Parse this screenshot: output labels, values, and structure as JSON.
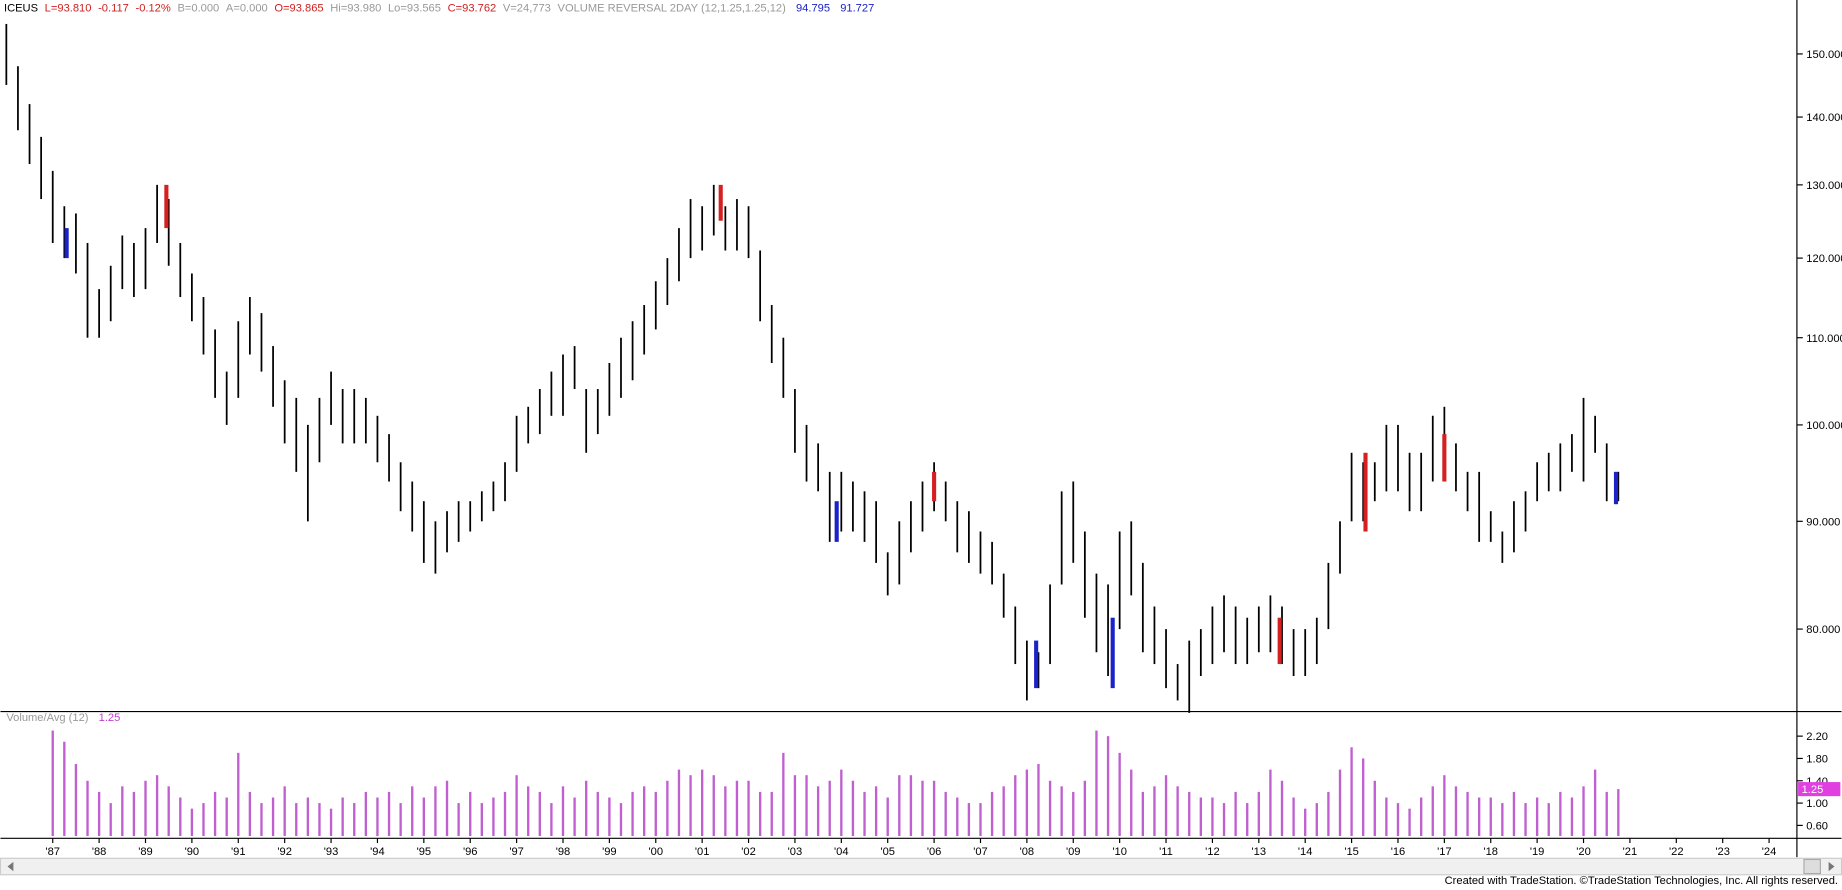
{
  "header": {
    "symbol": "ICEUS",
    "last": "L=93.810",
    "change": "-0.117",
    "change_pct": "-0.12%",
    "bid": "B=0.000",
    "ask": "A=0.000",
    "open": "O=93.865",
    "high": "Hi=93.980",
    "low": "Lo=93.565",
    "close": "C=93.762",
    "volume": "V=24,773",
    "study": "VOLUME REVERSAL 2DAY (12,1.25,1.25,12)",
    "study_v1": "94.795",
    "study_v2": "91.727"
  },
  "footer": "Created with TradeStation. ©TradeStation Technologies, Inc. All rights reserved.",
  "chart_data": {
    "type": "ohlc",
    "color": "#000000",
    "log_scale": true,
    "grid": false,
    "xlim": [
      1986.0,
      2024.6
    ],
    "xticks": [
      {
        "value": 1987,
        "label": "'87"
      },
      {
        "value": 1988,
        "label": "'88"
      },
      {
        "value": 1989,
        "label": "'89"
      },
      {
        "value": 1990,
        "label": "'90"
      },
      {
        "value": 1991,
        "label": "'91"
      },
      {
        "value": 1992,
        "label": "'92"
      },
      {
        "value": 1993,
        "label": "'93"
      },
      {
        "value": 1994,
        "label": "'94"
      },
      {
        "value": 1995,
        "label": "'95"
      },
      {
        "value": 1996,
        "label": "'96"
      },
      {
        "value": 1997,
        "label": "'97"
      },
      {
        "value": 1998,
        "label": "'98"
      },
      {
        "value": 1999,
        "label": "'99"
      },
      {
        "value": 2000,
        "label": "'00"
      },
      {
        "value": 2001,
        "label": "'01"
      },
      {
        "value": 2002,
        "label": "'02"
      },
      {
        "value": 2003,
        "label": "'03"
      },
      {
        "value": 2004,
        "label": "'04"
      },
      {
        "value": 2005,
        "label": "'05"
      },
      {
        "value": 2006,
        "label": "'06"
      },
      {
        "value": 2007,
        "label": "'07"
      },
      {
        "value": 2008,
        "label": "'08"
      },
      {
        "value": 2009,
        "label": "'09"
      },
      {
        "value": 2010,
        "label": "'10"
      },
      {
        "value": 2011,
        "label": "'11"
      },
      {
        "value": 2012,
        "label": "'12"
      },
      {
        "value": 2013,
        "label": "'13"
      },
      {
        "value": 2014,
        "label": "'14"
      },
      {
        "value": 2015,
        "label": "'15"
      },
      {
        "value": 2016,
        "label": "'16"
      },
      {
        "value": 2017,
        "label": "'17"
      },
      {
        "value": 2018,
        "label": "'18"
      },
      {
        "value": 2019,
        "label": "'19"
      },
      {
        "value": 2020,
        "label": "'20"
      },
      {
        "value": 2021,
        "label": "'21"
      },
      {
        "value": 2022,
        "label": "'22"
      },
      {
        "value": 2023,
        "label": "'23"
      },
      {
        "value": 2024,
        "label": "'24"
      }
    ],
    "ylim": [
      73.2,
      158.7
    ],
    "yticks": [
      {
        "value": 80,
        "label": "80.000"
      },
      {
        "value": 90,
        "label": "90.000"
      },
      {
        "value": 100,
        "label": "100.000"
      },
      {
        "value": 110,
        "label": "110.000"
      },
      {
        "value": 120,
        "label": "120.000"
      },
      {
        "value": 130,
        "label": "130.000"
      },
      {
        "value": 140,
        "label": "140.000"
      },
      {
        "value": 150,
        "label": "150.000"
      }
    ],
    "x": [
      1986.0,
      1986.25,
      1986.5,
      1986.75,
      1987.0,
      1987.25,
      1987.5,
      1987.75,
      1988.0,
      1988.25,
      1988.5,
      1988.75,
      1989.0,
      1989.25,
      1989.5,
      1989.75,
      1990.0,
      1990.25,
      1990.5,
      1990.75,
      1991.0,
      1991.25,
      1991.5,
      1991.75,
      1992.0,
      1992.25,
      1992.5,
      1992.75,
      1993.0,
      1993.25,
      1993.5,
      1993.75,
      1994.0,
      1994.25,
      1994.5,
      1994.75,
      1995.0,
      1995.25,
      1995.5,
      1995.75,
      1996.0,
      1996.25,
      1996.5,
      1996.75,
      1997.0,
      1997.25,
      1997.5,
      1997.75,
      1998.0,
      1998.25,
      1998.5,
      1998.75,
      1999.0,
      1999.25,
      1999.5,
      1999.75,
      2000.0,
      2000.25,
      2000.5,
      2000.75,
      2001.0,
      2001.25,
      2001.5,
      2001.75,
      2002.0,
      2002.25,
      2002.5,
      2002.75,
      2003.0,
      2003.25,
      2003.5,
      2003.75,
      2004.0,
      2004.25,
      2004.5,
      2004.75,
      2005.0,
      2005.25,
      2005.5,
      2005.75,
      2006.0,
      2006.25,
      2006.5,
      2006.75,
      2007.0,
      2007.25,
      2007.5,
      2007.75,
      2008.0,
      2008.25,
      2008.5,
      2008.75,
      2009.0,
      2009.25,
      2009.5,
      2009.75,
      2010.0,
      2010.25,
      2010.5,
      2010.75,
      2011.0,
      2011.25,
      2011.5,
      2011.75,
      2012.0,
      2012.25,
      2012.5,
      2012.75,
      2013.0,
      2013.25,
      2013.5,
      2013.75,
      2014.0,
      2014.25,
      2014.5,
      2014.75,
      2015.0,
      2015.25,
      2015.5,
      2015.75,
      2016.0,
      2016.25,
      2016.5,
      2016.75,
      2017.0,
      2017.25,
      2017.5,
      2017.75,
      2018.0,
      2018.25,
      2018.5,
      2018.75,
      2019.0,
      2019.25,
      2019.5,
      2019.75,
      2020.0,
      2020.25,
      2020.5,
      2020.75
    ],
    "high": [
      155,
      148,
      142,
      137,
      132,
      127,
      126,
      122,
      116,
      119,
      123,
      122,
      124,
      130,
      128,
      122,
      118,
      115,
      111,
      106,
      112,
      115,
      113,
      109,
      105,
      103,
      100,
      103,
      106,
      104,
      104,
      103,
      101,
      99,
      96,
      94,
      92,
      90,
      91,
      92,
      92,
      93,
      94,
      96,
      101,
      102,
      104,
      106,
      108,
      109,
      104,
      104,
      107,
      110,
      112,
      114,
      117,
      120,
      124,
      128,
      127,
      130,
      127,
      128,
      127,
      121,
      114,
      110,
      104,
      100,
      98,
      95,
      95,
      94,
      93,
      92,
      87,
      90,
      92,
      94,
      96,
      94,
      92,
      91,
      89,
      88,
      85,
      82,
      79,
      78,
      84,
      93,
      94,
      89,
      85,
      84,
      89,
      90,
      86,
      82,
      80,
      77,
      79,
      80,
      82,
      83,
      82,
      81,
      82,
      83,
      82,
      80,
      80,
      81,
      86,
      90,
      97,
      96,
      96,
      100,
      100,
      97,
      97,
      101,
      102,
      98,
      95,
      95,
      91,
      89,
      92,
      93,
      96,
      97,
      98,
      99,
      103,
      101,
      98,
      95
    ],
    "low": [
      145,
      138,
      133,
      128,
      122,
      120,
      118,
      110,
      110,
      112,
      116,
      115,
      116,
      122,
      119,
      115,
      112,
      108,
      103,
      100,
      103,
      108,
      106,
      102,
      98,
      95,
      90,
      96,
      100,
      98,
      98,
      98,
      96,
      94,
      91,
      89,
      86,
      85,
      87,
      88,
      89,
      90,
      91,
      92,
      95,
      98,
      99,
      101,
      101,
      104,
      97,
      99,
      101,
      103,
      105,
      108,
      111,
      114,
      117,
      120,
      121,
      123,
      121,
      121,
      120,
      112,
      107,
      103,
      97,
      94,
      93,
      88,
      89,
      89,
      88,
      86,
      83,
      84,
      87,
      89,
      91,
      90,
      87,
      86,
      85,
      84,
      81,
      77,
      74,
      75,
      77,
      84,
      86,
      81,
      78,
      76,
      80,
      83,
      78,
      77,
      75,
      74,
      73,
      76,
      77,
      78,
      77,
      77,
      78,
      78,
      77,
      76,
      76,
      77,
      80,
      85,
      90,
      90,
      92,
      93,
      93,
      91,
      91,
      94,
      96,
      93,
      91,
      88,
      88,
      86,
      87,
      89,
      92,
      93,
      93,
      95,
      94,
      97,
      92,
      92
    ],
    "markers": [
      {
        "x": 1987.3,
        "high": 124,
        "low": 120,
        "color": "#1a22c8"
      },
      {
        "x": 1989.45,
        "high": 130,
        "low": 124,
        "color": "#d42020"
      },
      {
        "x": 2001.4,
        "high": 130,
        "low": 125,
        "color": "#d42020"
      },
      {
        "x": 2003.9,
        "high": 92,
        "low": 88,
        "color": "#1a22c8"
      },
      {
        "x": 2006.0,
        "high": 95,
        "low": 92,
        "color": "#d42020"
      },
      {
        "x": 2008.2,
        "high": 79,
        "low": 75,
        "color": "#1a22c8"
      },
      {
        "x": 2009.85,
        "high": 81,
        "low": 75,
        "color": "#1a22c8"
      },
      {
        "x": 2013.45,
        "high": 81,
        "low": 77,
        "color": "#d42020"
      },
      {
        "x": 2015.3,
        "high": 97,
        "low": 89,
        "color": "#d42020"
      },
      {
        "x": 2017.0,
        "high": 99,
        "low": 94,
        "color": "#d42020"
      },
      {
        "x": 2020.7,
        "high": 95,
        "low": 91.7,
        "color": "#1a22c8"
      }
    ],
    "volume": {
      "label": "Volume/Avg (12)",
      "value_label": "1.25",
      "color": "#c060d0",
      "ylim": [
        0.41,
        2.62
      ],
      "yticks": [
        {
          "value": 0.6,
          "label": "0.60"
        },
        {
          "value": 1.0,
          "label": "1.00"
        },
        {
          "value": 1.4,
          "label": "1.40"
        },
        {
          "value": 1.8,
          "label": "1.80"
        },
        {
          "value": 2.2,
          "label": "2.20"
        }
      ],
      "values": [
        null,
        null,
        null,
        null,
        2.3,
        2.1,
        1.7,
        1.4,
        1.2,
        1.0,
        1.3,
        1.2,
        1.4,
        1.5,
        1.3,
        1.1,
        0.9,
        1.0,
        1.2,
        1.1,
        1.9,
        1.2,
        1.0,
        1.1,
        1.3,
        1.0,
        1.1,
        1.0,
        0.9,
        1.1,
        1.0,
        1.2,
        1.1,
        1.2,
        1.0,
        1.3,
        1.1,
        1.3,
        1.4,
        1.0,
        1.2,
        1.0,
        1.1,
        1.2,
        1.5,
        1.3,
        1.2,
        1.0,
        1.3,
        1.1,
        1.4,
        1.2,
        1.1,
        1.0,
        1.2,
        1.3,
        1.2,
        1.4,
        1.6,
        1.5,
        1.6,
        1.5,
        1.3,
        1.4,
        1.4,
        1.2,
        1.2,
        1.9,
        1.5,
        1.5,
        1.3,
        1.4,
        1.6,
        1.4,
        1.2,
        1.3,
        1.1,
        1.5,
        1.5,
        1.4,
        1.4,
        1.2,
        1.1,
        1.0,
        1.0,
        1.2,
        1.3,
        1.5,
        1.6,
        1.7,
        1.4,
        1.3,
        1.2,
        1.4,
        2.3,
        2.2,
        1.9,
        1.6,
        1.2,
        1.3,
        1.5,
        1.3,
        1.2,
        1.1,
        1.1,
        1.0,
        1.2,
        1.0,
        1.2,
        1.6,
        1.4,
        1.1,
        0.9,
        1.0,
        1.2,
        1.6,
        2.0,
        1.8,
        1.4,
        1.1,
        1.0,
        0.9,
        1.1,
        1.3,
        1.5,
        1.3,
        1.2,
        1.1,
        1.1,
        1.0,
        1.2,
        1.0,
        1.1,
        1.0,
        1.2,
        1.1,
        1.3,
        1.6,
        1.2,
        1.25
      ]
    }
  }
}
